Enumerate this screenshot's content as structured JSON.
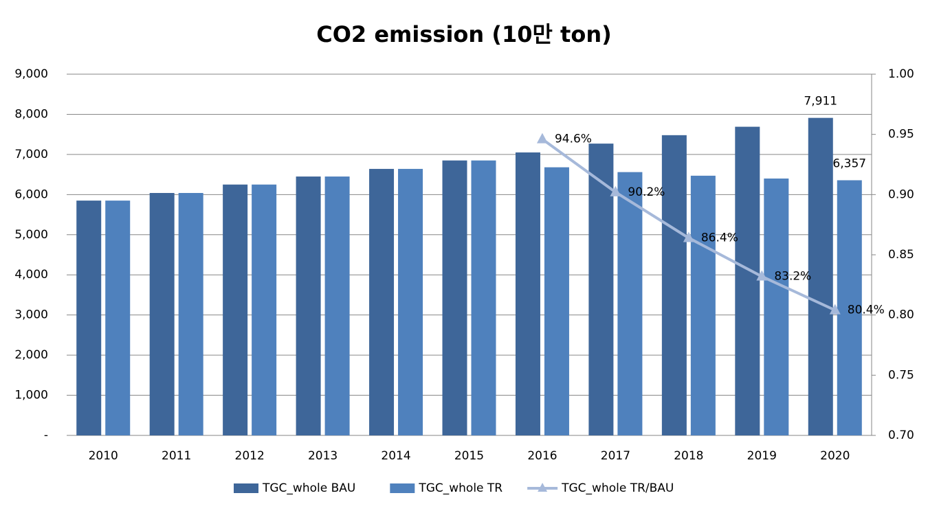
{
  "chart_data": {
    "type": "bar",
    "title": "CO2 emission (10만 ton)",
    "categories": [
      "2010",
      "2011",
      "2012",
      "2013",
      "2014",
      "2015",
      "2016",
      "2017",
      "2018",
      "2019",
      "2020"
    ],
    "series": [
      {
        "name": "TGC_whole BAU",
        "type": "bar",
        "color": "#3e6699",
        "values": [
          5850,
          6040,
          6250,
          6450,
          6640,
          6850,
          7050,
          7270,
          7480,
          7690,
          7911
        ],
        "value_labels": [
          null,
          null,
          null,
          null,
          null,
          null,
          null,
          null,
          null,
          null,
          "7,911"
        ]
      },
      {
        "name": "TGC_whole TR",
        "type": "bar",
        "color": "#4f81bd",
        "values": [
          5850,
          6040,
          6250,
          6450,
          6640,
          6850,
          6680,
          6560,
          6470,
          6400,
          6357
        ],
        "value_labels": [
          null,
          null,
          null,
          null,
          null,
          null,
          null,
          null,
          null,
          null,
          "6,357"
        ]
      },
      {
        "name": "TGC_whole TR/BAU",
        "type": "line",
        "axis": "y2",
        "color": "#a6b9da",
        "values": [
          null,
          null,
          null,
          null,
          null,
          null,
          0.946,
          0.902,
          0.864,
          0.832,
          0.804
        ],
        "value_labels": [
          null,
          null,
          null,
          null,
          null,
          null,
          "94.6%",
          "90.2%",
          "86.4%",
          "83.2%",
          "80.4%"
        ]
      }
    ],
    "ylim": [
      0,
      9000
    ],
    "yticks": [
      {
        "value": 0,
        "label": "-"
      },
      {
        "value": 1000,
        "label": "1,000"
      },
      {
        "value": 2000,
        "label": "2,000"
      },
      {
        "value": 3000,
        "label": "3,000"
      },
      {
        "value": 4000,
        "label": "4,000"
      },
      {
        "value": 5000,
        "label": "5,000"
      },
      {
        "value": 6000,
        "label": "6,000"
      },
      {
        "value": 7000,
        "label": "7,000"
      },
      {
        "value": 8000,
        "label": "8,000"
      },
      {
        "value": 9000,
        "label": "9,000"
      }
    ],
    "y2lim": [
      0.7,
      1.0
    ],
    "y2ticks": [
      {
        "value": 0.7,
        "label": "0.70"
      },
      {
        "value": 0.75,
        "label": "0.75"
      },
      {
        "value": 0.8,
        "label": "0.80"
      },
      {
        "value": 0.85,
        "label": "0.85"
      },
      {
        "value": 0.9,
        "label": "0.90"
      },
      {
        "value": 0.95,
        "label": "0.95"
      },
      {
        "value": 1.0,
        "label": "1.00"
      }
    ],
    "grid": true,
    "legend": "bottom"
  }
}
